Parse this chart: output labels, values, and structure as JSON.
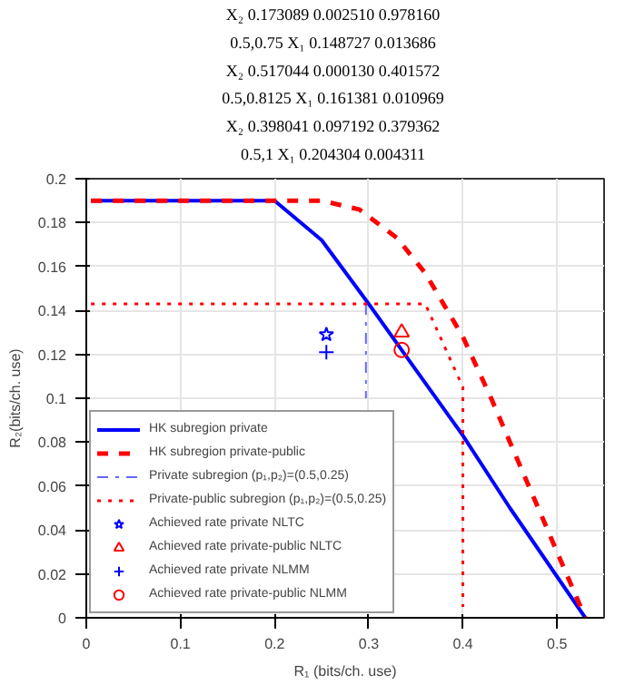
{
  "chart_data": {
    "type": "line",
    "xlabel": "R₁ (bits/ch. use)",
    "ylabel": "R₂(bits/ch. use)",
    "xlim": [
      0,
      0.55
    ],
    "ylim": [
      0,
      0.2
    ],
    "xticks": [
      0,
      0.1,
      0.2,
      0.3,
      0.4,
      0.5
    ],
    "yticks": [
      0,
      0.02,
      0.04,
      0.06,
      0.08,
      0.1,
      0.12,
      0.14,
      0.16,
      0.18,
      0.2
    ],
    "grid": true,
    "legend": "bottom left",
    "annotations": [
      "X₂   0.173089   0.002510   0.978160",
      "0.5,0.75   X₁   0.148727   0.013686",
      "X₂   0.517044   0.000130   0.401572",
      "0.5,0.8125   X₁   0.161381   0.010969",
      "X₂   0.398041   0.097192   0.379362",
      "0.5,1   X₁   0.204304   0.004311"
    ],
    "series": [
      {
        "name": "HK subregion private",
        "line_style": "solid",
        "color": "#0000ff",
        "x": [
          0.005,
          0.2,
          0.25,
          0.3,
          0.35,
          0.4,
          0.45,
          0.53
        ],
        "values": [
          0.19,
          0.19,
          0.172,
          0.143,
          0.113,
          0.083,
          0.05,
          0
        ]
      },
      {
        "name": "HK subregion private-public",
        "line_style": "dashed",
        "color": "#ff0000",
        "x": [
          0.005,
          0.25,
          0.29,
          0.33,
          0.36,
          0.4,
          0.43,
          0.45,
          0.49,
          0.53
        ],
        "values": [
          0.19,
          0.19,
          0.186,
          0.173,
          0.157,
          0.128,
          0.1,
          0.08,
          0.04,
          0
        ]
      },
      {
        "name": "Private subregion (p₁,p₂)=(0.5,0.25)",
        "line_style": "dashdot",
        "color": "#6666ff",
        "x": [
          0.297,
          0.297
        ],
        "values": [
          0.143,
          0.1
        ]
      },
      {
        "name": "Private-public subregion (p₁,p₂)=(0.5,0.25)",
        "line_style": "dotted",
        "color": "#ff0000",
        "x": [
          0.005,
          0.36,
          0.4,
          0.4
        ],
        "values": [
          0.143,
          0.143,
          0.105,
          0.005
        ]
      },
      {
        "name": "Achieved rate private NLTC",
        "type": "scatter",
        "marker": "star",
        "color": "#0000ff",
        "x": [
          0.255
        ],
        "values": [
          0.129
        ]
      },
      {
        "name": "Achieved rate private-public NLTC",
        "type": "scatter",
        "marker": "triangle",
        "color": "#ff0000",
        "x": [
          0.335
        ],
        "values": [
          0.13
        ]
      },
      {
        "name": "Achieved rate private NLMM",
        "type": "scatter",
        "marker": "cross",
        "color": "#0000ff",
        "x": [
          0.255
        ],
        "values": [
          0.121
        ]
      },
      {
        "name": "Achieved rate private-public NLMM",
        "type": "scatter",
        "marker": "circle",
        "color": "#ff0000",
        "x": [
          0.335
        ],
        "values": [
          0.122
        ]
      }
    ]
  }
}
